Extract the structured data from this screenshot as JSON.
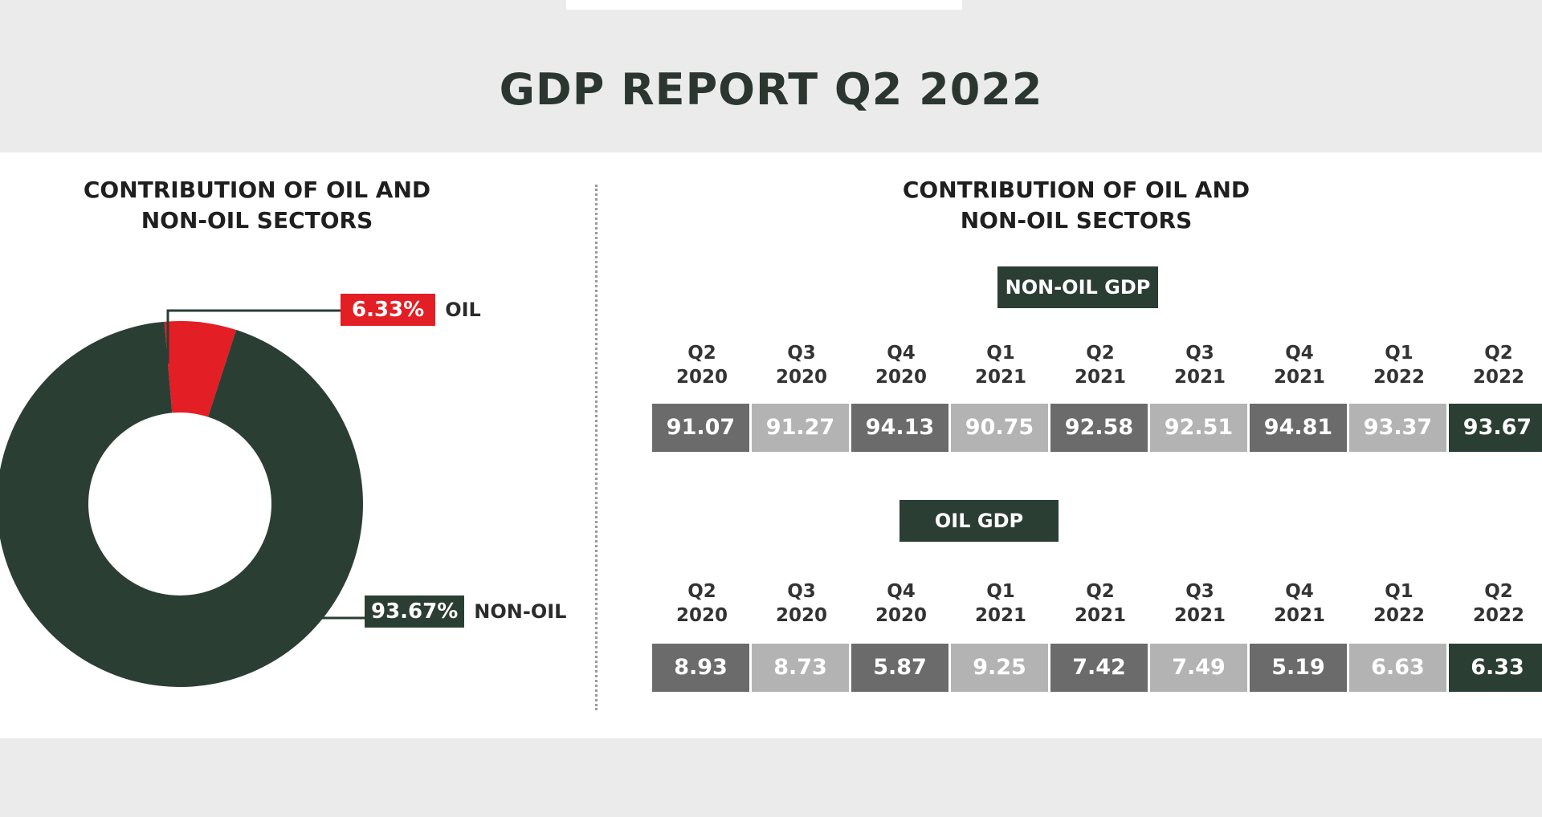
{
  "title": "GDP REPORT Q2 2022",
  "chart_data": [
    {
      "type": "pie",
      "title": "CONTRIBUTION OF OIL AND NON-OIL SECTORS",
      "title_lines": [
        "CONTRIBUTION OF OIL AND",
        "NON-OIL SECTORS"
      ],
      "slices": [
        {
          "label": "OIL",
          "value": 6.33,
          "value_label": "6.33%",
          "color": "#e31e24"
        },
        {
          "label": "NON-OIL",
          "value": 93.67,
          "value_label": "93.67%",
          "color": "#2b3e33"
        }
      ]
    },
    {
      "type": "table",
      "title": "CONTRIBUTION OF OIL AND NON-OIL SECTORS",
      "title_lines": [
        "CONTRIBUTION OF OIL AND",
        "NON-OIL SECTORS"
      ],
      "categories": [
        [
          "Q2",
          "2020"
        ],
        [
          "Q3",
          "2020"
        ],
        [
          "Q4",
          "2020"
        ],
        [
          "Q1",
          "2021"
        ],
        [
          "Q2",
          "2021"
        ],
        [
          "Q3",
          "2021"
        ],
        [
          "Q4",
          "2021"
        ],
        [
          "Q1",
          "2022"
        ],
        [
          "Q2",
          "2022"
        ]
      ],
      "series": [
        {
          "name": "NON-OIL GDP",
          "values": [
            "91.07",
            "91.27",
            "94.13",
            "90.75",
            "92.58",
            "92.51",
            "94.81",
            "93.37",
            "93.67"
          ]
        },
        {
          "name": "OIL GDP",
          "values": [
            "8.93",
            "8.73",
            "5.87",
            "9.25",
            "7.42",
            "7.49",
            "5.19",
            "6.63",
            "6.33"
          ]
        }
      ],
      "cell_colors": [
        "#6b6b6b",
        "#b3b3b3",
        "#6b6b6b",
        "#b3b3b3",
        "#6b6b6b",
        "#b3b3b3",
        "#6b6b6b",
        "#b3b3b3",
        "#2b3e33"
      ]
    }
  ]
}
